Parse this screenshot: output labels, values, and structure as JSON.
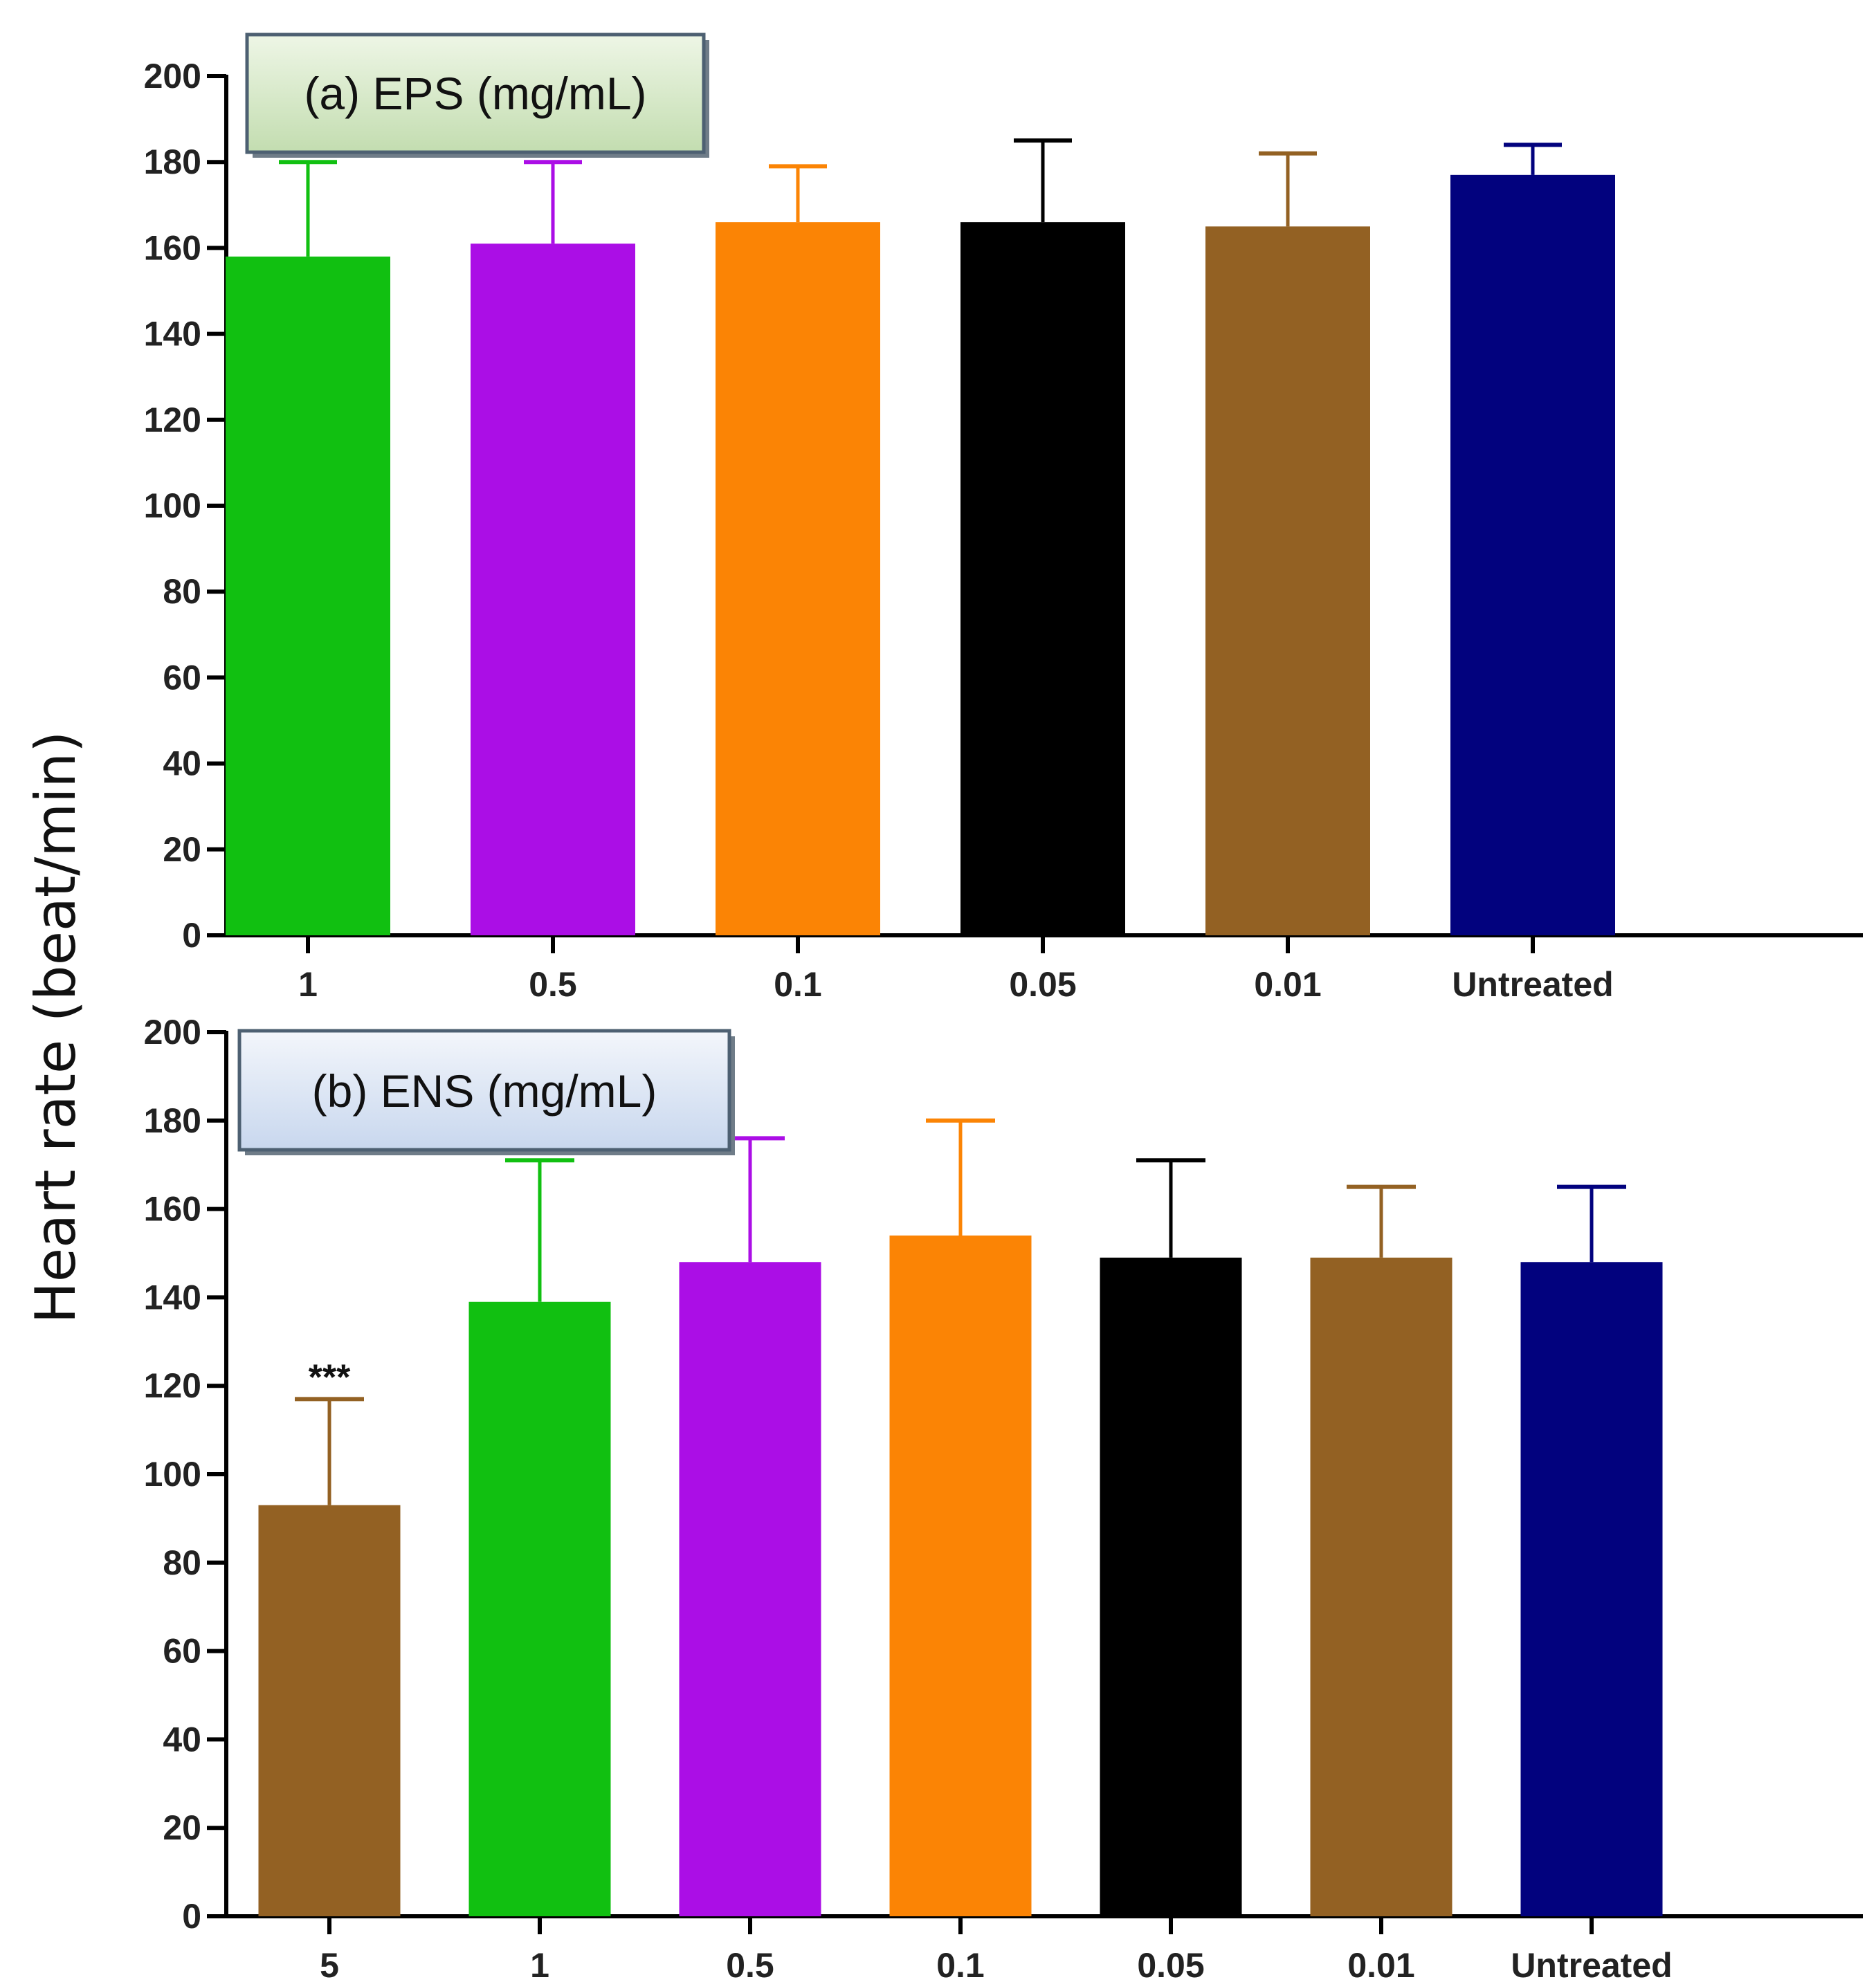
{
  "ylabel": "Heart rate (beat/min)",
  "chart_data": [
    {
      "type": "bar",
      "title": "(a) EPS (mg/mL)",
      "xlabel": "",
      "ylabel": "Heart rate (beat/min)",
      "ylim": [
        0,
        200
      ],
      "yticks": [
        0,
        20,
        40,
        60,
        80,
        100,
        120,
        140,
        160,
        180,
        200
      ],
      "categories": [
        "1",
        "0.5",
        "0.1",
        "0.05",
        "0.01",
        "Untreated"
      ],
      "values": [
        158,
        161,
        166,
        166,
        165,
        177
      ],
      "errors": [
        22,
        19,
        13,
        19,
        17,
        7
      ],
      "colors": [
        "#11c011",
        "#ab0ee6",
        "#fb8405",
        "#000000",
        "#936123",
        "#02027e"
      ],
      "annotations": [
        "",
        "",
        "",
        "",
        "",
        ""
      ],
      "title_box": {
        "fill_top": "#eef6e6",
        "fill_bottom": "#c3ddb0",
        "border": "#4d6072"
      }
    },
    {
      "type": "bar",
      "title": "(b) ENS (mg/mL)",
      "xlabel": "",
      "ylabel": "Heart rate (beat/min)",
      "ylim": [
        0,
        200
      ],
      "yticks": [
        0,
        20,
        40,
        60,
        80,
        100,
        120,
        140,
        160,
        180,
        200
      ],
      "categories": [
        "5",
        "1",
        "0.5",
        "0.1",
        "0.05",
        "0.01",
        "Untreated"
      ],
      "values": [
        93,
        139,
        148,
        154,
        149,
        149,
        148
      ],
      "errors": [
        24,
        32,
        28,
        26,
        22,
        16,
        17
      ],
      "colors": [
        "#936123",
        "#11c011",
        "#ab0ee6",
        "#fb8405",
        "#000000",
        "#936123",
        "#02027e"
      ],
      "annotations": [
        "***",
        "",
        "",
        "",
        "",
        "",
        ""
      ],
      "title_box": {
        "fill_top": "#f3f6fb",
        "fill_bottom": "#c8d7ee",
        "border": "#4d6072"
      }
    }
  ]
}
